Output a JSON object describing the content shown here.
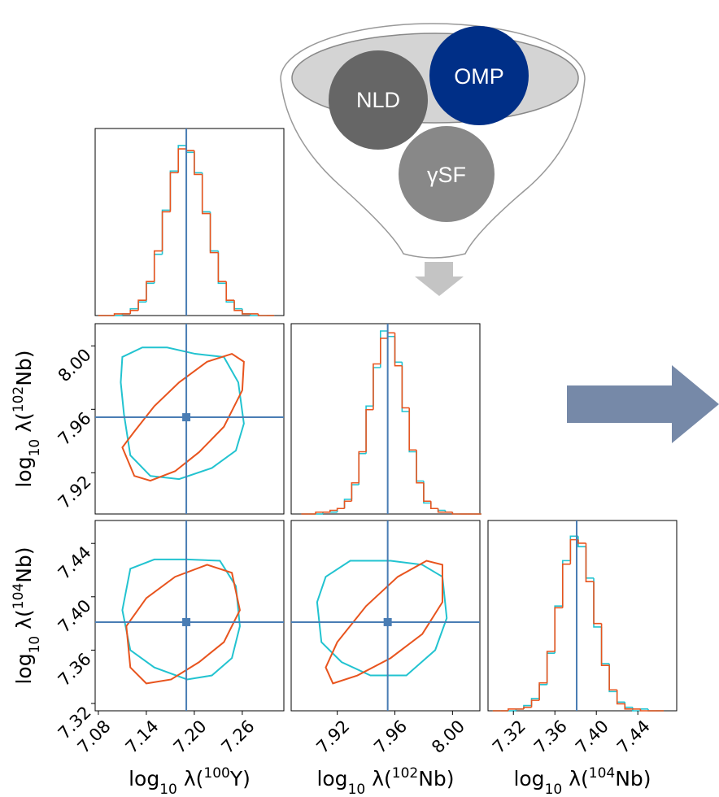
{
  "diagram": {
    "nodes": [
      {
        "label": "NLD"
      },
      {
        "label": "OMP"
      },
      {
        "label": "γSF"
      }
    ]
  },
  "chart_data": [
    {
      "type": "histogram",
      "xlim": [
        7.076,
        7.312
      ],
      "ylim": [
        0,
        110
      ],
      "truth": 7.19,
      "bins": [
        7.08,
        7.09,
        7.1,
        7.11,
        7.12,
        7.13,
        7.14,
        7.15,
        7.16,
        7.17,
        7.18,
        7.19,
        7.2,
        7.21,
        7.22,
        7.23,
        7.24,
        7.25,
        7.26,
        7.27,
        7.28,
        7.29,
        7.3
      ],
      "series": [
        {
          "color": "#22c3d0",
          "values": [
            0,
            0,
            0,
            1,
            4,
            8,
            19,
            36,
            62,
            85,
            100,
            96,
            84,
            61,
            38,
            19,
            8,
            4,
            1,
            0,
            0,
            0
          ]
        },
        {
          "color": "#e8541e",
          "values": [
            0,
            0,
            1,
            1,
            3,
            9,
            20,
            38,
            61,
            84,
            98,
            97,
            83,
            60,
            37,
            20,
            9,
            3,
            1,
            1,
            0,
            0
          ]
        }
      ]
    },
    {
      "type": "contour",
      "xlim": [
        7.076,
        7.312
      ],
      "ylim": [
        7.894,
        8.014
      ],
      "yticks": [
        {
          "value": 8.0,
          "label": "8.00"
        },
        7.96,
        7.92
      ],
      "ylabel": {
        "log": "log",
        "sub": "10",
        "lambda": "λ(",
        "sup": "102",
        "rest": "Nb)"
      },
      "marker": {
        "x": 7.19,
        "y": 7.955
      },
      "series": [
        {
          "color": "#22c3d0",
          "x": [
            7.11,
            7.135,
            7.166,
            7.201,
            7.237,
            7.255,
            7.262,
            7.252,
            7.222,
            7.181,
            7.145,
            7.12,
            7.112,
            7.108
          ],
          "values": [
            7.993,
            7.999,
            7.999,
            7.995,
            7.993,
            7.977,
            7.951,
            7.934,
            7.923,
            7.916,
            7.918,
            7.931,
            7.957,
            7.977
          ]
        },
        {
          "color": "#e8541e",
          "x": [
            7.11,
            7.125,
            7.145,
            7.176,
            7.206,
            7.237,
            7.26,
            7.262,
            7.247,
            7.216,
            7.181,
            7.15,
            7.125
          ],
          "values": [
            7.936,
            7.918,
            7.915,
            7.921,
            7.933,
            7.949,
            7.972,
            7.99,
            7.995,
            7.99,
            7.977,
            7.962,
            7.946
          ]
        }
      ]
    },
    {
      "type": "histogram",
      "xlim": [
        7.888,
        8.019
      ],
      "ylim": [
        0,
        104
      ],
      "truth": 7.955,
      "bins": [
        7.895,
        7.9,
        7.905,
        7.91,
        7.915,
        7.92,
        7.925,
        7.93,
        7.935,
        7.94,
        7.945,
        7.95,
        7.955,
        7.96,
        7.965,
        7.97,
        7.975,
        7.98,
        7.985,
        7.99,
        7.995,
        8.0,
        8.005,
        8.01,
        8.015,
        8.02
      ],
      "series": [
        {
          "color": "#22c3d0",
          "values": [
            0,
            0,
            0,
            1,
            1,
            3,
            8,
            16,
            33,
            59,
            80,
            100,
            97,
            83,
            56,
            34,
            18,
            6,
            3,
            2,
            1,
            0,
            0,
            0,
            0
          ]
        },
        {
          "color": "#e8541e",
          "values": [
            0,
            0,
            1,
            1,
            2,
            3,
            7,
            17,
            34,
            57,
            82,
            96,
            99,
            81,
            58,
            35,
            17,
            7,
            3,
            1,
            1,
            0,
            0,
            0,
            0
          ]
        }
      ]
    },
    {
      "type": "contour",
      "xlim": [
        7.076,
        7.312
      ],
      "ylim": [
        7.3145,
        7.4572
      ],
      "xticks": [
        7.08,
        7.14,
        {
          "value": 7.2,
          "label": "7.20"
        },
        7.26
      ],
      "yticks": [
        7.44,
        {
          "value": 7.4,
          "label": "7.40"
        },
        7.36,
        7.32
      ],
      "xlabel": {
        "log": "log",
        "sub": "10",
        "lambda": "λ(",
        "sup": "100",
        "rest": "Y)"
      },
      "ylabel": {
        "log": "log",
        "sub": "10",
        "lambda": "λ(",
        "sup": "104",
        "rest": "Nb)"
      },
      "marker": {
        "x": 7.19,
        "y": 7.381
      },
      "series": [
        {
          "color": "#22c3d0",
          "x": [
            7.12,
            7.15,
            7.191,
            7.232,
            7.252,
            7.257,
            7.247,
            7.222,
            7.191,
            7.15,
            7.12,
            7.11
          ],
          "values": [
            7.421,
            7.428,
            7.428,
            7.427,
            7.408,
            7.378,
            7.354,
            7.341,
            7.338,
            7.347,
            7.36,
            7.39
          ]
        },
        {
          "color": "#e8541e",
          "x": [
            7.115,
            7.12,
            7.14,
            7.171,
            7.206,
            7.237,
            7.257,
            7.247,
            7.216,
            7.176,
            7.14
          ],
          "values": [
            7.378,
            7.347,
            7.335,
            7.338,
            7.351,
            7.366,
            7.39,
            7.418,
            7.424,
            7.415,
            7.399
          ]
        }
      ]
    },
    {
      "type": "contour",
      "xlim": [
        7.888,
        8.019
      ],
      "ylim": [
        7.3145,
        7.4572
      ],
      "xticks": [
        7.92,
        7.96,
        {
          "value": 8.0,
          "label": "8.00"
        }
      ],
      "xlabel": {
        "log": "log",
        "sub": "10",
        "lambda": "λ(",
        "sup": "102",
        "rest": "Nb)"
      },
      "marker": {
        "x": 7.955,
        "y": 7.381
      },
      "series": [
        {
          "color": "#22c3d0",
          "x": [
            7.912,
            7.929,
            7.957,
            7.979,
            7.993,
            7.996,
            7.988,
            7.968,
            7.943,
            7.923,
            7.909,
            7.906
          ],
          "values": [
            7.415,
            7.427,
            7.427,
            7.424,
            7.415,
            7.384,
            7.36,
            7.341,
            7.341,
            7.351,
            7.366,
            7.396
          ]
        },
        {
          "color": "#e8541e",
          "x": [
            7.912,
            7.917,
            7.934,
            7.957,
            7.979,
            7.993,
            7.993,
            7.982,
            7.962,
            7.94,
            7.92
          ],
          "values": [
            7.347,
            7.335,
            7.341,
            7.354,
            7.372,
            7.396,
            7.424,
            7.427,
            7.415,
            7.393,
            7.366
          ]
        }
      ]
    },
    {
      "type": "histogram",
      "xlim": [
        7.2955,
        7.4775
      ],
      "ylim": [
        0,
        109
      ],
      "truth": 7.381,
      "xticks": [
        7.32,
        7.36,
        {
          "value": 7.4,
          "label": "7.40"
        },
        7.44
      ],
      "xlabel": {
        "log": "log",
        "sub": "10",
        "lambda": "λ(",
        "sup": "104",
        "rest": "Nb)"
      },
      "bins": [
        7.3,
        7.3075,
        7.315,
        7.3225,
        7.33,
        7.3375,
        7.345,
        7.3525,
        7.36,
        7.3675,
        7.375,
        7.3825,
        7.39,
        7.3975,
        7.405,
        7.4125,
        7.42,
        7.4275,
        7.435,
        7.4425,
        7.45,
        7.4575,
        7.465
      ],
      "series": [
        {
          "color": "#22c3d0",
          "values": [
            0,
            0,
            0,
            1,
            3,
            7,
            15,
            33,
            60,
            86,
            100,
            94,
            76,
            48,
            27,
            11,
            5,
            2,
            0,
            1,
            0,
            0
          ]
        },
        {
          "color": "#e8541e",
          "values": [
            0,
            0,
            1,
            1,
            2,
            6,
            16,
            34,
            59,
            84,
            98,
            96,
            74,
            50,
            26,
            12,
            4,
            1,
            1,
            0,
            0,
            0
          ]
        }
      ]
    }
  ]
}
